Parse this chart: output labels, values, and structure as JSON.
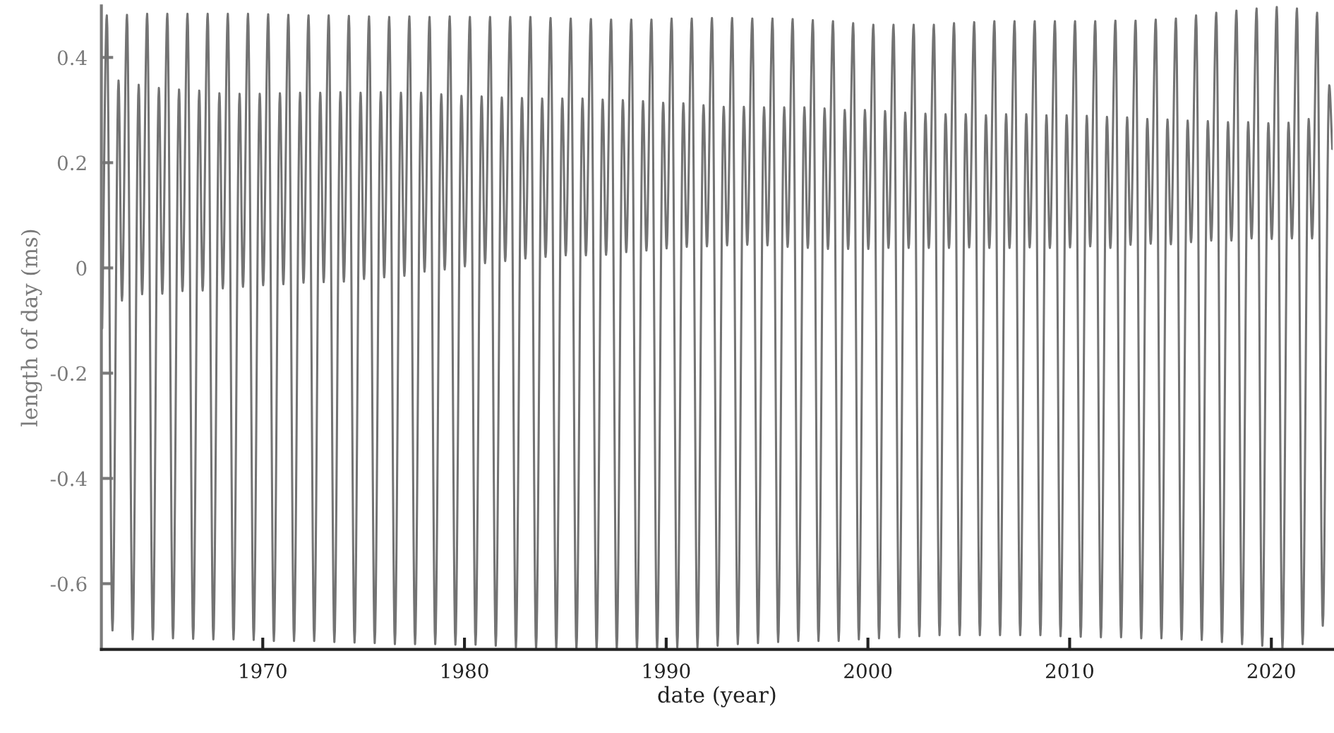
{
  "chart_data": {
    "type": "line",
    "xlabel": "date (year)",
    "ylabel": "length of day (ms)",
    "xlim": [
      1962.0,
      2023.04
    ],
    "ylim": [
      -0.725,
      0.498
    ],
    "xticks": [
      1970,
      1980,
      1990,
      2000,
      2010,
      2020
    ],
    "yticks": [
      -0.6,
      -0.4,
      -0.2,
      0,
      0.2,
      0.4
    ],
    "series": [
      {
        "color": "#737373",
        "x": [
          1962.04,
          1962.27,
          1962.55,
          1962.85,
          1963.02,
          1963.27,
          1963.55,
          1963.85,
          1964.02,
          1964.27,
          1964.55,
          1964.85,
          1965.02,
          1965.27,
          1965.55,
          1965.85,
          1966.02,
          1966.27,
          1966.55,
          1966.85,
          1967.02,
          1967.27,
          1967.55,
          1967.85,
          1968.02,
          1968.27,
          1968.55,
          1968.85,
          1969.02,
          1969.27,
          1969.55,
          1969.85,
          1970.02,
          1970.27,
          1970.55,
          1970.85,
          1971.02,
          1971.27,
          1971.55,
          1971.85,
          1972.02,
          1972.27,
          1972.55,
          1972.85,
          1973.02,
          1973.27,
          1973.55,
          1973.85,
          1974.02,
          1974.27,
          1974.55,
          1974.85,
          1975.02,
          1975.27,
          1975.55,
          1975.85,
          1976.02,
          1976.27,
          1976.55,
          1976.85,
          1977.02,
          1977.27,
          1977.55,
          1977.85,
          1978.02,
          1978.27,
          1978.55,
          1978.85,
          1979.02,
          1979.27,
          1979.55,
          1979.85,
          1980.02,
          1980.27,
          1980.55,
          1980.85,
          1981.02,
          1981.27,
          1981.55,
          1981.85,
          1982.02,
          1982.27,
          1982.55,
          1982.85,
          1983.02,
          1983.27,
          1983.55,
          1983.85,
          1984.02,
          1984.27,
          1984.55,
          1984.85,
          1985.02,
          1985.27,
          1985.55,
          1985.85,
          1986.02,
          1986.27,
          1986.55,
          1986.85,
          1987.02,
          1987.27,
          1987.55,
          1987.85,
          1988.02,
          1988.27,
          1988.55,
          1988.85,
          1989.02,
          1989.27,
          1989.55,
          1989.85,
          1990.02,
          1990.27,
          1990.55,
          1990.85,
          1991.02,
          1991.27,
          1991.55,
          1991.85,
          1992.02,
          1992.27,
          1992.55,
          1992.85,
          1993.02,
          1993.27,
          1993.55,
          1993.85,
          1994.02,
          1994.27,
          1994.55,
          1994.85,
          1995.02,
          1995.27,
          1995.55,
          1995.85,
          1996.02,
          1996.27,
          1996.55,
          1996.85,
          1997.02,
          1997.27,
          1997.55,
          1997.85,
          1998.02,
          1998.27,
          1998.55,
          1998.85,
          1999.02,
          1999.27,
          1999.55,
          1999.85,
          2000.02,
          2000.27,
          2000.55,
          2000.85,
          2001.02,
          2001.27,
          2001.55,
          2001.85,
          2002.02,
          2002.27,
          2002.55,
          2002.85,
          2003.02,
          2003.27,
          2003.55,
          2003.85,
          2004.02,
          2004.27,
          2004.55,
          2004.85,
          2005.02,
          2005.27,
          2005.55,
          2005.85,
          2006.02,
          2006.27,
          2006.55,
          2006.85,
          2007.02,
          2007.27,
          2007.55,
          2007.85,
          2008.02,
          2008.27,
          2008.55,
          2008.85,
          2009.02,
          2009.27,
          2009.55,
          2009.85,
          2010.02,
          2010.27,
          2010.55,
          2010.85,
          2011.02,
          2011.27,
          2011.55,
          2011.85,
          2012.02,
          2012.27,
          2012.55,
          2012.85,
          2013.02,
          2013.27,
          2013.55,
          2013.85,
          2014.02,
          2014.27,
          2014.55,
          2014.85,
          2015.02,
          2015.27,
          2015.55,
          2015.85,
          2016.02,
          2016.27,
          2016.55,
          2016.85,
          2017.02,
          2017.27,
          2017.55,
          2017.85,
          2018.02,
          2018.27,
          2018.55,
          2018.85,
          2019.02,
          2019.27,
          2019.55,
          2019.85,
          2020.02,
          2020.27,
          2020.55,
          2020.85,
          2021.02,
          2021.27,
          2021.55,
          2021.85,
          2022.02,
          2022.27,
          2022.55,
          2022.87,
          2023.02
        ],
        "values": [
          -0.115,
          0.48,
          -0.689,
          0.356,
          -0.062,
          0.481,
          -0.706,
          0.348,
          -0.05,
          0.483,
          -0.706,
          0.342,
          -0.049,
          0.483,
          -0.704,
          0.339,
          -0.044,
          0.483,
          -0.705,
          0.337,
          -0.043,
          0.483,
          -0.706,
          0.332,
          -0.039,
          0.483,
          -0.706,
          0.331,
          -0.036,
          0.483,
          -0.707,
          0.331,
          -0.033,
          0.482,
          -0.709,
          0.332,
          -0.031,
          0.481,
          -0.709,
          0.333,
          -0.028,
          0.48,
          -0.709,
          0.333,
          -0.027,
          0.48,
          -0.711,
          0.334,
          -0.026,
          0.479,
          -0.712,
          0.333,
          -0.021,
          0.478,
          -0.713,
          0.334,
          -0.018,
          0.477,
          -0.715,
          0.333,
          -0.015,
          0.478,
          -0.715,
          0.333,
          -0.007,
          0.477,
          -0.715,
          0.33,
          -0.003,
          0.478,
          -0.716,
          0.327,
          0.003,
          0.477,
          -0.716,
          0.326,
          0.009,
          0.477,
          -0.718,
          0.324,
          0.013,
          0.477,
          -0.721,
          0.323,
          0.018,
          0.477,
          -0.723,
          0.322,
          0.021,
          0.475,
          -0.723,
          0.322,
          0.024,
          0.474,
          -0.724,
          0.322,
          0.024,
          0.473,
          -0.724,
          0.32,
          0.025,
          0.472,
          -0.724,
          0.319,
          0.03,
          0.472,
          -0.724,
          0.317,
          0.033,
          0.472,
          -0.724,
          0.314,
          0.037,
          0.474,
          -0.721,
          0.313,
          0.04,
          0.474,
          -0.721,
          0.309,
          0.041,
          0.475,
          -0.718,
          0.306,
          0.043,
          0.475,
          -0.715,
          0.306,
          0.044,
          0.474,
          -0.713,
          0.305,
          0.043,
          0.474,
          -0.711,
          0.305,
          0.04,
          0.473,
          -0.709,
          0.305,
          0.038,
          0.471,
          -0.709,
          0.303,
          0.036,
          0.469,
          -0.709,
          0.3,
          0.036,
          0.465,
          -0.706,
          0.3,
          0.036,
          0.462,
          -0.704,
          0.298,
          0.038,
          0.462,
          -0.702,
          0.295,
          0.038,
          0.462,
          -0.7,
          0.293,
          0.038,
          0.462,
          -0.698,
          0.292,
          0.038,
          0.465,
          -0.698,
          0.292,
          0.039,
          0.467,
          -0.698,
          0.29,
          0.038,
          0.469,
          -0.698,
          0.292,
          0.038,
          0.469,
          -0.698,
          0.292,
          0.039,
          0.469,
          -0.698,
          0.29,
          0.038,
          0.469,
          -0.7,
          0.29,
          0.039,
          0.469,
          -0.701,
          0.289,
          0.041,
          0.469,
          -0.702,
          0.287,
          0.038,
          0.47,
          -0.702,
          0.286,
          0.044,
          0.47,
          -0.704,
          0.283,
          0.046,
          0.472,
          -0.704,
          0.282,
          0.045,
          0.474,
          -0.706,
          0.28,
          0.049,
          0.48,
          -0.707,
          0.279,
          0.052,
          0.485,
          -0.711,
          0.277,
          0.052,
          0.489,
          -0.715,
          0.277,
          0.056,
          0.493,
          -0.718,
          0.275,
          0.055,
          0.496,
          -0.723,
          0.276,
          0.056,
          0.493,
          -0.715,
          0.283,
          0.056,
          0.485,
          -0.68,
          0.347,
          0.226
        ]
      }
    ]
  }
}
